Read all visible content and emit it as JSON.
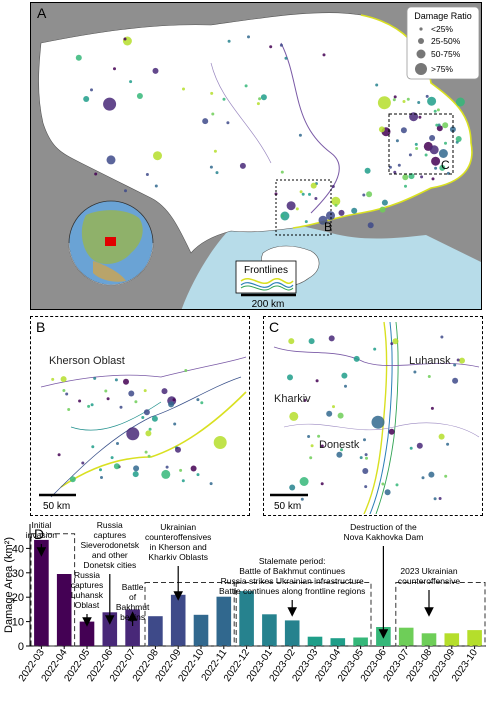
{
  "panels": {
    "a": "A",
    "b": "B",
    "c": "C",
    "d": "D"
  },
  "map_a": {
    "legend_title": "Damage Ratio",
    "legend_items": [
      "<25%",
      "25-50%",
      "50-75%",
      ">75%"
    ],
    "inset_b_label": "B",
    "inset_c_label": "C",
    "frontlines_label": "Frontlines",
    "scale_label": "200 km"
  },
  "map_b": {
    "region_label": "Kherson Oblast",
    "scale_label": "50 km"
  },
  "map_c": {
    "labels": {
      "luhansk": "Luhansk",
      "kharkiv": "Kharkiv",
      "donetsk": "Donestk"
    },
    "scale_label": "50 km"
  },
  "colors": {
    "land": "#ffffff",
    "neighbor": "#8f8f8f",
    "sea": "#b7dce9",
    "frontline_yellow": "#d9e021",
    "bars": "viridis"
  },
  "chart_data": {
    "type": "bar",
    "ylabel": "Damage Area (km²)",
    "ylim": [
      0,
      50
    ],
    "categories": [
      "2022-03",
      "2022-04",
      "2022-05",
      "2022-06",
      "2022-07",
      "2022-08",
      "2022-09",
      "2022-10",
      "2022-11",
      "2022-12",
      "2023-01",
      "2023-02",
      "2023-03",
      "2023-04",
      "2023-05",
      "2023-06",
      "2023-07",
      "2023-08",
      "2023-09",
      "2023-10"
    ],
    "values": [
      43.5,
      29.5,
      10,
      13.8,
      15,
      12.2,
      21,
      12.8,
      20.2,
      22.5,
      13,
      10.5,
      3.8,
      3.2,
      3.5,
      7.8,
      7.5,
      5.2,
      5.2,
      6.5
    ],
    "annotations": [
      {
        "text": "Initial invasion",
        "target": "2022-03"
      },
      {
        "text": "Russia captures Luhansk Oblast",
        "target": "2022-05"
      },
      {
        "text": "Russia captures Sieverodonetsk and other Donetsk cities",
        "target": "2022-06"
      },
      {
        "text": "Battle of Bakhmut begins",
        "target": "2022-07"
      },
      {
        "text": "Ukrainian counteroffensives in Kherson and Kharkiv Oblasts",
        "target": "2022-09"
      },
      {
        "text": "Stalemate period: Battle of Bakhmut continues Russia strikes Ukrainian infrastructure Battle continues along frontline regions",
        "target": "2023-02"
      },
      {
        "text": "Destruction of the Nova Kakhovka Dam",
        "target": "2023-06"
      },
      {
        "text": "2023 Ukrainian counteroffensive",
        "target": "2023-08"
      }
    ]
  }
}
